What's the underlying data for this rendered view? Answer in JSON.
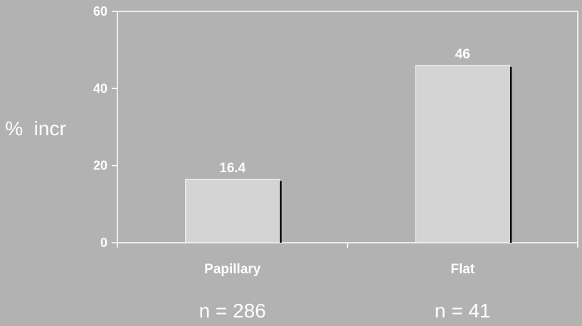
{
  "chart_data": {
    "type": "bar",
    "categories": [
      "Papillary",
      "Flat"
    ],
    "values": [
      16.4,
      46
    ],
    "data_labels": [
      "16.4",
      "46"
    ],
    "ylabel": "%  incr",
    "ylim": [
      0,
      60
    ],
    "yticks": [
      "0",
      "20",
      "40",
      "60"
    ],
    "annotations": [
      "n = 286",
      "n = 41"
    ],
    "grid": false,
    "plot_frame": true,
    "bar_color": "#d4d4d4",
    "background_color": "#b2b2b2"
  }
}
